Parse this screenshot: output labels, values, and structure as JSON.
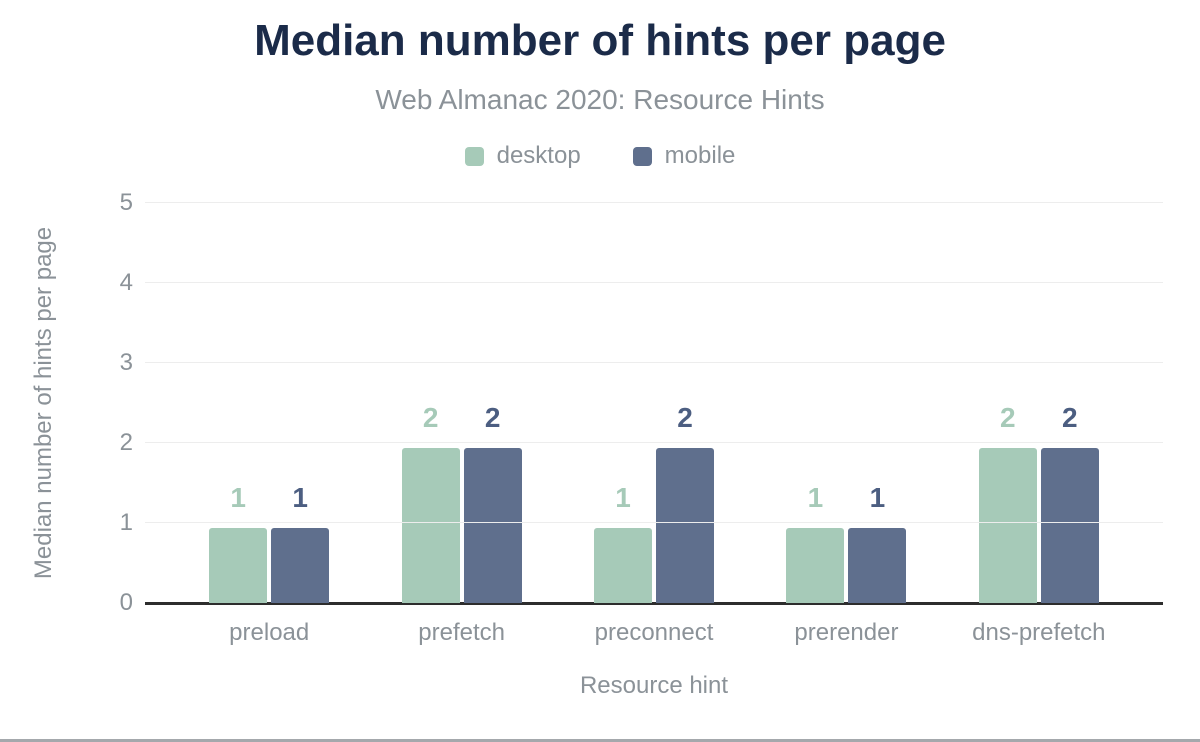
{
  "chart_data": {
    "type": "bar",
    "title": "Median number of hints per page",
    "subtitle": "Web Almanac 2020: Resource Hints",
    "xlabel": "Resource hint",
    "ylabel": "Median number of hints per page",
    "categories": [
      "preload",
      "prefetch",
      "preconnect",
      "prerender",
      "dns-prefetch"
    ],
    "series": [
      {
        "name": "desktop",
        "color": "#a6cab8",
        "label_color": "#a6cab8",
        "values": [
          1,
          2,
          1,
          1,
          2
        ]
      },
      {
        "name": "mobile",
        "color": "#5f6f8d",
        "label_color": "#4c5e81",
        "values": [
          1,
          2,
          2,
          1,
          2
        ]
      }
    ],
    "yticks": [
      0,
      1,
      2,
      3,
      4,
      5
    ],
    "ylim": [
      0,
      5
    ],
    "grid": true,
    "legend_position": "top"
  },
  "colors": {
    "title_text": "#1b2b49",
    "axis_text": "#8b9298",
    "gridline": "#ededed",
    "baseline": "#2d2d2d",
    "background": "#ffffff",
    "bottom_border": "#a4a8ac"
  }
}
